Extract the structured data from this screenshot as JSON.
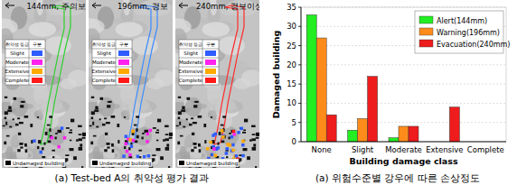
{
  "panels": [
    {
      "title": "144mm, 주의보",
      "color": "#2fd02f"
    },
    {
      "title": "196mm, 경보",
      "color": "#3a8cff"
    },
    {
      "title": "240mm, 경보이상",
      "color": "#ff2a2a"
    }
  ],
  "map_legend": {
    "header": [
      "취약성 등급",
      "구분"
    ],
    "classes": [
      {
        "label": "Slight",
        "color": "#2f5cff"
      },
      {
        "label": "Moderate",
        "color": "#ff22ee"
      },
      {
        "label": "Extensive",
        "color": "#ffaa00"
      },
      {
        "label": "Complete",
        "color": "#ff1a1a"
      }
    ],
    "undamaged": "Undamaged building"
  },
  "captions": [
    "(a) Test-bed A의 취약성 평가 결과",
    "(a) 위험수준별 강우에 따른 손상정도"
  ],
  "chart_data": {
    "type": "bar",
    "x_label": "Building damage class",
    "y_label": "Damaged building",
    "categories": [
      "None",
      "Slight",
      "Moderate",
      "Extensive",
      "Complete"
    ],
    "series": [
      {
        "name": "Alert(144mm)",
        "color": "#22ee22",
        "values": [
          33,
          3,
          1,
          0,
          0
        ]
      },
      {
        "name": "Warning(196mm)",
        "color": "#ff8c1a",
        "values": [
          27,
          6,
          4,
          0,
          0
        ]
      },
      {
        "name": "Evacuation(240mm)",
        "color": "#ee1c1c",
        "values": [
          7,
          17,
          4,
          9,
          0
        ]
      }
    ],
    "ylim": [
      0,
      35
    ],
    "yticks": [
      0,
      5,
      10,
      15,
      20,
      25,
      30,
      35
    ],
    "grid": true,
    "legend": "upper right"
  }
}
